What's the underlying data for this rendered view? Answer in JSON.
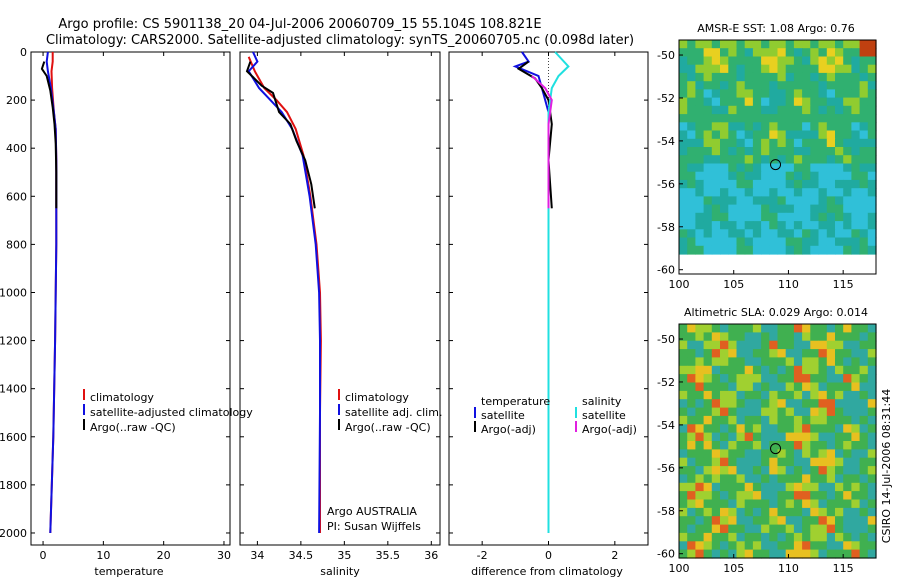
{
  "header": {
    "line1": "Argo profile: CS 5901138_20 04-Jul-2006 20060709_15 55.104S 108.821E",
    "line2": "Climatology: CARS2000. Satellite-adjusted climatology: synTS_20060705.nc (0.098d later)"
  },
  "footer_stamp": "CSIRO 14-Jul-2006 08:31:44",
  "colors": {
    "climatology": "#e01010",
    "satellite": "#1010e0",
    "argo": "#000000",
    "sal_satellite": "#20e0e0",
    "sal_argo": "#e020e0"
  },
  "chart_data": [
    {
      "type": "line",
      "id": "temperature",
      "xlabel": "temperature",
      "ylabel": "",
      "xlim": [
        -2,
        31
      ],
      "ylim": [
        2050,
        0
      ],
      "xticks": [
        0,
        10,
        20,
        30
      ],
      "yticks": [
        0,
        200,
        400,
        600,
        800,
        1000,
        1200,
        1400,
        1600,
        1800,
        2000
      ],
      "legend": {
        "position": "bottom-right",
        "entries": [
          "climatology",
          "satellite-adjusted climatology",
          "Argo(..raw -QC)"
        ]
      },
      "series": [
        {
          "name": "climatology",
          "color": "#e01010",
          "points": [
            [
              1.6,
              0
            ],
            [
              1.6,
              40
            ],
            [
              1.4,
              80
            ],
            [
              1.5,
              150
            ],
            [
              1.8,
              250
            ],
            [
              2.1,
              320
            ],
            [
              2.2,
              450
            ],
            [
              2.2,
              800
            ],
            [
              2.0,
              1200
            ],
            [
              1.7,
              1600
            ],
            [
              1.2,
              2000
            ]
          ]
        },
        {
          "name": "satellite-adjusted climatology",
          "color": "#1010e0",
          "points": [
            [
              0.8,
              0
            ],
            [
              0.6,
              40
            ],
            [
              0.8,
              80
            ],
            [
              1.3,
              150
            ],
            [
              1.8,
              250
            ],
            [
              2.1,
              320
            ],
            [
              2.2,
              450
            ],
            [
              2.2,
              800
            ],
            [
              2.0,
              1200
            ],
            [
              1.7,
              1600
            ],
            [
              1.2,
              2000
            ]
          ]
        },
        {
          "name": "Argo(..raw -QC)",
          "color": "#000000",
          "points": [
            [
              0.2,
              40
            ],
            [
              -0.2,
              70
            ],
            [
              0.6,
              100
            ],
            [
              1.2,
              160
            ],
            [
              1.6,
              230
            ],
            [
              1.9,
              300
            ],
            [
              2.1,
              380
            ],
            [
              2.2,
              500
            ],
            [
              2.2,
              650
            ]
          ]
        }
      ]
    },
    {
      "type": "line",
      "id": "salinity",
      "xlabel": "salinity",
      "ylabel": "",
      "xlim": [
        33.8,
        36.1
      ],
      "ylim": [
        2050,
        0
      ],
      "xticks": [
        34,
        34.5,
        35,
        35.5,
        36
      ],
      "annotation": [
        "Argo AUSTRALIA",
        "PI: Susan Wijffels"
      ],
      "legend": {
        "position": "bottom-right",
        "entries": [
          "climatology",
          "satellite adj. clim.",
          "Argo(..raw -QC)"
        ]
      },
      "series": [
        {
          "name": "climatology",
          "color": "#e01010",
          "points": [
            [
              33.9,
              20
            ],
            [
              33.97,
              80
            ],
            [
              34.08,
              150
            ],
            [
              34.22,
              200
            ],
            [
              34.34,
              250
            ],
            [
              34.44,
              320
            ],
            [
              34.53,
              430
            ],
            [
              34.61,
              600
            ],
            [
              34.68,
              800
            ],
            [
              34.72,
              1000
            ],
            [
              34.73,
              1200
            ],
            [
              34.72,
              1500
            ],
            [
              34.72,
              2000
            ]
          ]
        },
        {
          "name": "satellite adj. clim.",
          "color": "#1010e0",
          "points": [
            [
              33.95,
              0
            ],
            [
              34.0,
              40
            ],
            [
              33.9,
              80
            ],
            [
              34.02,
              150
            ],
            [
              34.15,
              200
            ],
            [
              34.28,
              250
            ],
            [
              34.4,
              320
            ],
            [
              34.52,
              430
            ],
            [
              34.6,
              600
            ],
            [
              34.67,
              800
            ],
            [
              34.71,
              1000
            ],
            [
              34.72,
              1200
            ],
            [
              34.72,
              1500
            ],
            [
              34.71,
              2000
            ]
          ]
        },
        {
          "name": "Argo(..raw -QC)",
          "color": "#000000",
          "points": [
            [
              33.92,
              40
            ],
            [
              33.88,
              80
            ],
            [
              34.05,
              140
            ],
            [
              34.18,
              170
            ],
            [
              34.25,
              250
            ],
            [
              34.38,
              300
            ],
            [
              34.45,
              370
            ],
            [
              34.55,
              450
            ],
            [
              34.62,
              550
            ],
            [
              34.66,
              650
            ]
          ]
        }
      ]
    },
    {
      "type": "line",
      "id": "difference",
      "xlabel": "difference from climatology",
      "ylabel": "",
      "xlim": [
        -3,
        3
      ],
      "ylim": [
        2050,
        0
      ],
      "xticks": [
        -2,
        0,
        2
      ],
      "legend": {
        "position": "bottom",
        "entries": [
          "temperature",
          "satellite",
          "Argo(-adj)",
          "salinity",
          "satellite",
          "Argo(-adj)"
        ]
      },
      "series": [
        {
          "name": "temperature satellite",
          "color": "#1010e0",
          "points": [
            [
              -0.8,
              0
            ],
            [
              -0.6,
              40
            ],
            [
              -1.0,
              60
            ],
            [
              -0.3,
              100
            ],
            [
              -0.2,
              150
            ],
            [
              0,
              250
            ],
            [
              0,
              2000
            ]
          ]
        },
        {
          "name": "temperature Argo(-adj)",
          "color": "#000000",
          "points": [
            [
              -0.6,
              40
            ],
            [
              -0.9,
              70
            ],
            [
              -0.4,
              110
            ],
            [
              -0.2,
              150
            ],
            [
              0,
              200
            ],
            [
              0.1,
              300
            ],
            [
              0,
              450
            ],
            [
              0.1,
              650
            ]
          ]
        },
        {
          "name": "salinity satellite",
          "color": "#20e0e0",
          "points": [
            [
              0.2,
              0
            ],
            [
              0.6,
              60
            ],
            [
              0.3,
              100
            ],
            [
              0.1,
              150
            ],
            [
              0,
              250
            ],
            [
              0,
              2000
            ]
          ]
        },
        {
          "name": "salinity Argo(-adj)",
          "color": "#e020e0",
          "points": [
            [
              -0.5,
              100
            ],
            [
              -0.1,
              150
            ],
            [
              0.1,
              200
            ],
            [
              0,
              300
            ],
            [
              0,
              650
            ]
          ]
        }
      ]
    },
    {
      "type": "heatmap",
      "id": "sst_map",
      "title": "AMSR-E SST: 1.08 Argo: 0.76",
      "xlim": [
        100,
        118
      ],
      "ylim": [
        -60.2,
        -49.3
      ],
      "xticks": [
        100,
        105,
        110,
        115
      ],
      "yticks": [
        -50,
        -52,
        -54,
        -56,
        -58,
        -60
      ],
      "marker": [
        108.821,
        -55.104
      ]
    },
    {
      "type": "heatmap",
      "id": "sla_map",
      "title": "Altimetric SLA: 0.029 Argo: 0.014",
      "xlim": [
        100,
        118
      ],
      "ylim": [
        -60.2,
        -49.3
      ],
      "xticks": [
        100,
        105,
        110,
        115
      ],
      "yticks": [
        -50,
        -52,
        -54,
        -56,
        -58,
        -60
      ],
      "marker": [
        108.821,
        -55.104
      ]
    }
  ]
}
